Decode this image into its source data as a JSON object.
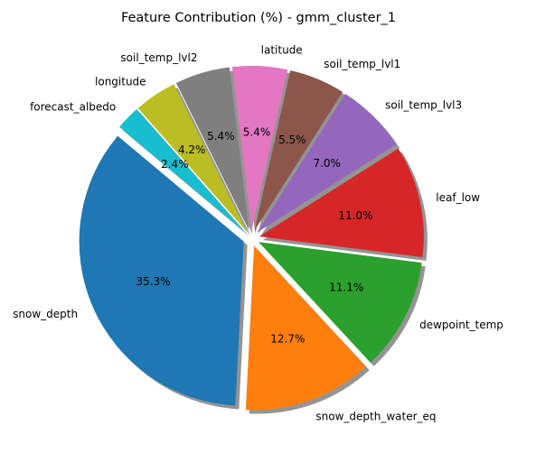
{
  "chart_data": {
    "type": "pie",
    "title": "Feature Contribution (%) - gmm_cluster_1",
    "slices": [
      {
        "label": "snow_depth",
        "value": 35.3,
        "pct_label": "35.3%",
        "color": "#1f77b4"
      },
      {
        "label": "snow_depth_water_eq",
        "value": 12.7,
        "pct_label": "12.7%",
        "color": "#ff7f0e"
      },
      {
        "label": "dewpoint_temp",
        "value": 11.1,
        "pct_label": "11.1%",
        "color": "#2ca02c"
      },
      {
        "label": "leaf_low",
        "value": 11.0,
        "pct_label": "11.0%",
        "color": "#d62728"
      },
      {
        "label": "soil_temp_lvl3",
        "value": 7.0,
        "pct_label": "7.0%",
        "color": "#9467bd"
      },
      {
        "label": "soil_temp_lvl1",
        "value": 5.5,
        "pct_label": "5.5%",
        "color": "#8c564b"
      },
      {
        "label": "latitude",
        "value": 5.4,
        "pct_label": "5.4%",
        "color": "#e377c2"
      },
      {
        "label": "soil_temp_lvl2",
        "value": 5.4,
        "pct_label": "5.4%",
        "color": "#7f7f7f"
      },
      {
        "label": "longitude",
        "value": 4.2,
        "pct_label": "4.2%",
        "color": "#bcbd22"
      },
      {
        "label": "forecast_albedo",
        "value": 2.4,
        "pct_label": "2.4%",
        "color": "#17becf"
      }
    ],
    "start_angle_deg": 140,
    "direction": "counterclockwise",
    "exploded": true,
    "shadow": true
  }
}
